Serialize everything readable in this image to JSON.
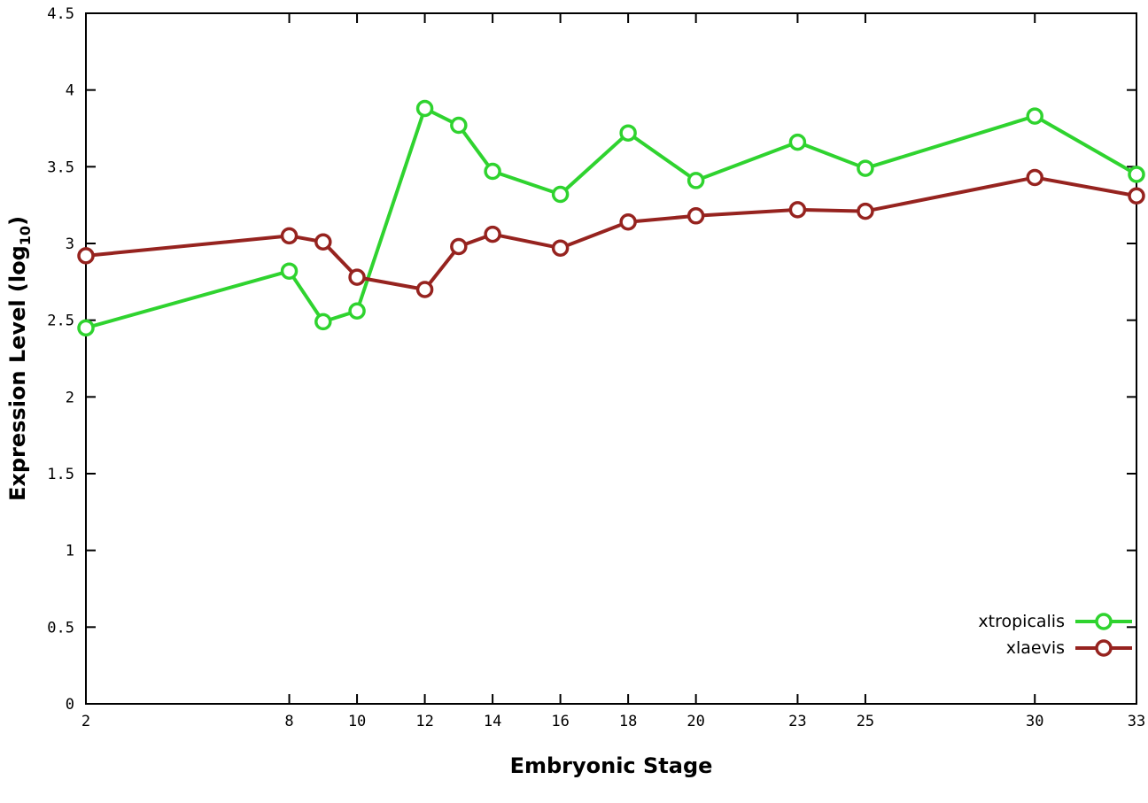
{
  "chart_data": {
    "type": "line",
    "title": "",
    "xlabel": "Embryonic Stage",
    "ylabel": "Expression Level (log10)",
    "ylabel_parts": {
      "prefix": "Expression Level (log",
      "sub": "10",
      "suffix": ")"
    },
    "xlim": [
      2,
      33
    ],
    "ylim": [
      0,
      4.5
    ],
    "grid": false,
    "legend_position": "bottom-right-inside",
    "x": [
      2,
      8,
      9,
      10,
      12,
      13,
      14,
      16,
      18,
      20,
      23,
      25,
      30,
      33
    ],
    "x_ticks": [
      2,
      8,
      10,
      12,
      14,
      16,
      18,
      20,
      23,
      25,
      30,
      33
    ],
    "x_tick_labels": [
      "2",
      "8",
      "10",
      "12",
      "14",
      "16",
      "18",
      "20",
      "23",
      "25",
      "30",
      "33"
    ],
    "y_ticks": [
      0,
      0.5,
      1,
      1.5,
      2,
      2.5,
      3,
      3.5,
      4,
      4.5
    ],
    "y_tick_labels": [
      "0",
      "0.5",
      "1",
      "1.5",
      "2",
      "2.5",
      "3",
      "3.5",
      "4",
      "4.5"
    ],
    "series": [
      {
        "name": "xtropicalis",
        "color": "#2fd32f",
        "values": [
          2.45,
          2.82,
          2.49,
          2.56,
          3.88,
          3.77,
          3.47,
          3.32,
          3.72,
          3.41,
          3.66,
          3.49,
          3.83,
          3.45
        ]
      },
      {
        "name": "xlaevis",
        "color": "#96231f",
        "values": [
          2.92,
          3.05,
          3.01,
          2.78,
          2.7,
          2.98,
          3.06,
          2.97,
          3.14,
          3.18,
          3.22,
          3.21,
          3.43,
          3.31
        ]
      }
    ],
    "marker": {
      "shape": "open-circle",
      "radius": 8,
      "stroke_width": 3.5,
      "fill": "#ffffff"
    },
    "line_width": 4,
    "plot_bg": "#ffffff",
    "border_color": "#000000",
    "tick_font_size": 17,
    "tick_length": 11
  }
}
